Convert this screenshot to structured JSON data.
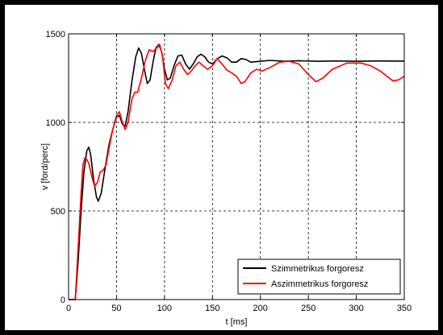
{
  "chart_data": {
    "type": "line",
    "title": "",
    "xlabel": "t [ms]",
    "ylabel": "v [ford/perc]",
    "xlim": [
      0,
      350
    ],
    "ylim": [
      0,
      1500
    ],
    "xticks": [
      0,
      50,
      100,
      150,
      200,
      250,
      300,
      350
    ],
    "yticks": [
      0,
      500,
      1000,
      1500
    ],
    "grid": true,
    "legend_position": "bottom-right",
    "series": [
      {
        "name": "Szimmetrikus forgoresz",
        "color": "#000000",
        "points": [
          [
            0,
            0
          ],
          [
            7,
            0
          ],
          [
            10,
            220
          ],
          [
            13,
            500
          ],
          [
            16,
            720
          ],
          [
            19,
            840
          ],
          [
            21,
            860
          ],
          [
            23,
            820
          ],
          [
            26,
            680
          ],
          [
            29,
            580
          ],
          [
            31,
            555
          ],
          [
            34,
            600
          ],
          [
            38,
            740
          ],
          [
            42,
            870
          ],
          [
            46,
            960
          ],
          [
            50,
            1030
          ],
          [
            53,
            1040
          ],
          [
            56,
            990
          ],
          [
            59,
            980
          ],
          [
            62,
            1060
          ],
          [
            66,
            1230
          ],
          [
            70,
            1370
          ],
          [
            73,
            1420
          ],
          [
            76,
            1390
          ],
          [
            79,
            1300
          ],
          [
            82,
            1220
          ],
          [
            85,
            1240
          ],
          [
            88,
            1340
          ],
          [
            91,
            1420
          ],
          [
            94,
            1440
          ],
          [
            97,
            1400
          ],
          [
            100,
            1300
          ],
          [
            103,
            1240
          ],
          [
            106,
            1250
          ],
          [
            110,
            1320
          ],
          [
            114,
            1375
          ],
          [
            118,
            1380
          ],
          [
            122,
            1330
          ],
          [
            126,
            1300
          ],
          [
            130,
            1330
          ],
          [
            134,
            1370
          ],
          [
            138,
            1385
          ],
          [
            142,
            1370
          ],
          [
            146,
            1340
          ],
          [
            150,
            1330
          ],
          [
            155,
            1360
          ],
          [
            160,
            1375
          ],
          [
            165,
            1365
          ],
          [
            170,
            1340
          ],
          [
            175,
            1340
          ],
          [
            180,
            1360
          ],
          [
            185,
            1355
          ],
          [
            190,
            1340
          ],
          [
            200,
            1345
          ],
          [
            210,
            1350
          ],
          [
            225,
            1345
          ],
          [
            240,
            1348
          ],
          [
            260,
            1345
          ],
          [
            280,
            1347
          ],
          [
            300,
            1345
          ],
          [
            325,
            1347
          ],
          [
            350,
            1346
          ]
        ]
      },
      {
        "name": "Aszimmetrikus forgoresz",
        "color": "#ff0000",
        "points": [
          [
            0,
            0
          ],
          [
            7,
            0
          ],
          [
            10,
            300
          ],
          [
            13,
            600
          ],
          [
            15,
            760
          ],
          [
            17,
            800
          ],
          [
            19,
            790
          ],
          [
            21,
            770
          ],
          [
            24,
            700
          ],
          [
            27,
            640
          ],
          [
            30,
            660
          ],
          [
            33,
            720
          ],
          [
            36,
            730
          ],
          [
            39,
            760
          ],
          [
            42,
            850
          ],
          [
            46,
            960
          ],
          [
            50,
            1040
          ],
          [
            53,
            1060
          ],
          [
            56,
            1000
          ],
          [
            59,
            960
          ],
          [
            62,
            1000
          ],
          [
            66,
            1130
          ],
          [
            69,
            1170
          ],
          [
            72,
            1170
          ],
          [
            76,
            1250
          ],
          [
            80,
            1350
          ],
          [
            84,
            1410
          ],
          [
            88,
            1400
          ],
          [
            92,
            1420
          ],
          [
            95,
            1440
          ],
          [
            98,
            1370
          ],
          [
            101,
            1220
          ],
          [
            104,
            1190
          ],
          [
            108,
            1240
          ],
          [
            112,
            1320
          ],
          [
            116,
            1340
          ],
          [
            120,
            1300
          ],
          [
            124,
            1270
          ],
          [
            128,
            1290
          ],
          [
            132,
            1320
          ],
          [
            136,
            1340
          ],
          [
            140,
            1320
          ],
          [
            145,
            1300
          ],
          [
            150,
            1320
          ],
          [
            155,
            1360
          ],
          [
            160,
            1330
          ],
          [
            165,
            1295
          ],
          [
            170,
            1280
          ],
          [
            175,
            1260
          ],
          [
            180,
            1220
          ],
          [
            184,
            1230
          ],
          [
            190,
            1280
          ],
          [
            196,
            1300
          ],
          [
            202,
            1290
          ],
          [
            210,
            1310
          ],
          [
            220,
            1340
          ],
          [
            230,
            1345
          ],
          [
            240,
            1330
          ],
          [
            250,
            1270
          ],
          [
            258,
            1230
          ],
          [
            265,
            1250
          ],
          [
            275,
            1300
          ],
          [
            290,
            1335
          ],
          [
            305,
            1335
          ],
          [
            315,
            1320
          ],
          [
            325,
            1290
          ],
          [
            332,
            1260
          ],
          [
            338,
            1235
          ],
          [
            344,
            1240
          ],
          [
            350,
            1260
          ]
        ]
      }
    ]
  }
}
